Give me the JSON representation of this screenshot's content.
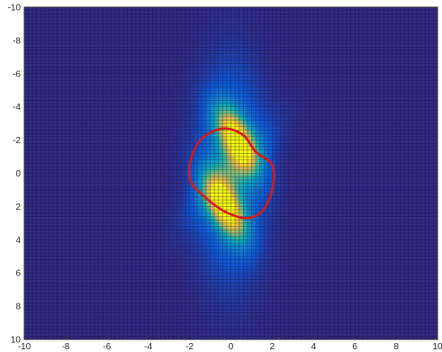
{
  "chart_data": {
    "type": "heatmap",
    "title": "",
    "xlabel": "",
    "ylabel": "",
    "xlim": [
      -10,
      10
    ],
    "ylim": [
      -10,
      10
    ],
    "y_direction": "reverse",
    "grid_cells": 100,
    "colormap": [
      "#352a87",
      "#0f5cdd",
      "#1481d6",
      "#06a4ca",
      "#2eb7a4",
      "#87bf77",
      "#d1bb59",
      "#fec832",
      "#f9fb0e"
    ],
    "x_ticks": [
      "-10",
      "-8",
      "-6",
      "-4",
      "-2",
      "0",
      "2",
      "4",
      "6",
      "8",
      "10"
    ],
    "y_ticks": [
      "-10",
      "-8",
      "-6",
      "-4",
      "-2",
      "0",
      "2",
      "4",
      "6",
      "8",
      "10"
    ],
    "peaks": [
      {
        "x": 0.3,
        "y": -2.0,
        "value": 1.0
      },
      {
        "x": -0.3,
        "y": 2.0,
        "value": 1.0
      }
    ],
    "overlay_curve": {
      "color": "#d7191c",
      "points": [
        [
          -1.2,
          -2.3
        ],
        [
          -0.3,
          -2.7
        ],
        [
          0.6,
          -2.3
        ],
        [
          1.2,
          -1.3
        ],
        [
          2.0,
          -0.5
        ],
        [
          2.0,
          1.0
        ],
        [
          1.5,
          2.3
        ],
        [
          0.7,
          2.7
        ],
        [
          -0.3,
          2.3
        ],
        [
          -1.1,
          1.6
        ],
        [
          -1.9,
          0.6
        ],
        [
          -2.0,
          -0.4
        ],
        [
          -1.7,
          -1.6
        ]
      ]
    }
  }
}
